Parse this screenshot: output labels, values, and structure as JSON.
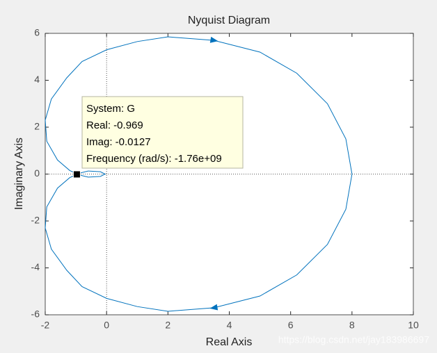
{
  "chart_data": {
    "type": "line",
    "title": "Nyquist Diagram",
    "xlabel": "Real Axis",
    "ylabel": "Imaginary Axis",
    "series": [
      {
        "name": "G",
        "color": "#0072bd",
        "x": [
          8,
          7.8,
          7.2,
          6.2,
          5,
          3.5,
          2,
          1,
          0,
          -0.8,
          -1.3,
          -1.8,
          -2,
          -1.95,
          -1.6,
          -1.2,
          -0.969,
          -0.6,
          -0.2,
          -0.05,
          -0.2,
          -0.6,
          -0.969,
          -1.2,
          -1.6,
          -1.95,
          -2,
          -1.8,
          -1.3,
          -0.8,
          0,
          1,
          2,
          3.5,
          5,
          6.2,
          7.2,
          7.8,
          8
        ],
        "values": [
          0,
          -1.5,
          -3,
          -4.3,
          -5.2,
          -5.7,
          -5.85,
          -5.65,
          -5.3,
          -4.8,
          -4.1,
          -3.2,
          -2.3,
          -1.4,
          -0.6,
          -0.15,
          -0.0127,
          -0.13,
          -0.1,
          0,
          0.1,
          0.13,
          0.0127,
          0.15,
          0.6,
          1.4,
          2.3,
          3.2,
          4.1,
          4.8,
          5.3,
          5.65,
          5.85,
          5.7,
          5.2,
          4.3,
          3,
          1.5,
          0
        ]
      }
    ],
    "xlim": [
      -2,
      10
    ],
    "xticks": [
      -2,
      0,
      2,
      4,
      6,
      8,
      10
    ],
    "ylim": [
      -6,
      6
    ],
    "yticks": [
      -6,
      -4,
      -2,
      0,
      2,
      4,
      6
    ],
    "datatip": {
      "x": -0.969,
      "y": -0.0127,
      "lines": [
        "System: G",
        "Real: -0.969",
        "Imag: -0.0127",
        "Frequency (rad/s): -1.76e+09"
      ]
    },
    "watermark": "https://blog.csdn.net/jay183986697"
  }
}
